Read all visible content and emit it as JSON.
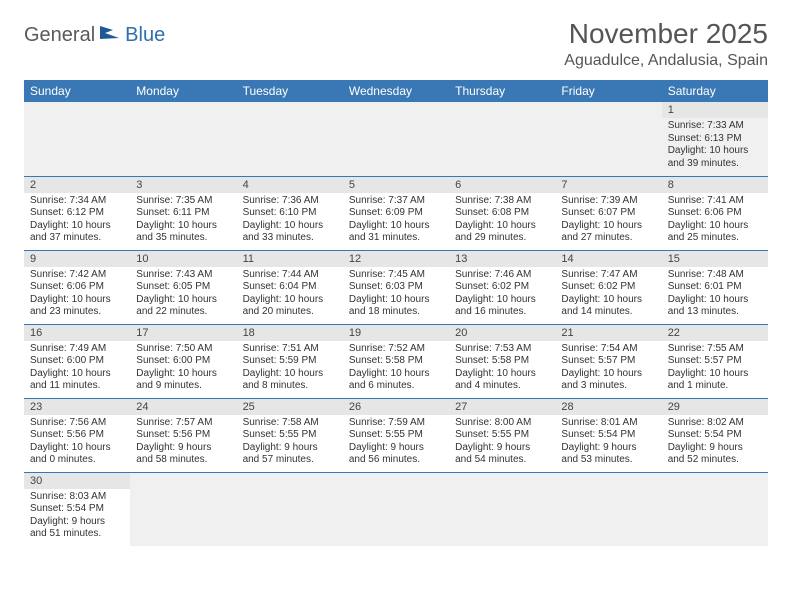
{
  "logo": {
    "text1": "General",
    "text2": "Blue"
  },
  "title": "November 2025",
  "location": "Aguadulce, Andalusia, Spain",
  "colors": {
    "header_bg": "#3a78b5",
    "header_text": "#ffffff",
    "daynum_bg": "#e6e6e6",
    "row_sep": "#3a78b5",
    "body_text": "#333333",
    "title_text": "#555555"
  },
  "columns": [
    "Sunday",
    "Monday",
    "Tuesday",
    "Wednesday",
    "Thursday",
    "Friday",
    "Saturday"
  ],
  "weeks": [
    [
      null,
      null,
      null,
      null,
      null,
      null,
      {
        "n": "1",
        "sr": "7:33 AM",
        "ss": "6:13 PM",
        "dl": "10 hours and 39 minutes."
      }
    ],
    [
      {
        "n": "2",
        "sr": "7:34 AM",
        "ss": "6:12 PM",
        "dl": "10 hours and 37 minutes."
      },
      {
        "n": "3",
        "sr": "7:35 AM",
        "ss": "6:11 PM",
        "dl": "10 hours and 35 minutes."
      },
      {
        "n": "4",
        "sr": "7:36 AM",
        "ss": "6:10 PM",
        "dl": "10 hours and 33 minutes."
      },
      {
        "n": "5",
        "sr": "7:37 AM",
        "ss": "6:09 PM",
        "dl": "10 hours and 31 minutes."
      },
      {
        "n": "6",
        "sr": "7:38 AM",
        "ss": "6:08 PM",
        "dl": "10 hours and 29 minutes."
      },
      {
        "n": "7",
        "sr": "7:39 AM",
        "ss": "6:07 PM",
        "dl": "10 hours and 27 minutes."
      },
      {
        "n": "8",
        "sr": "7:41 AM",
        "ss": "6:06 PM",
        "dl": "10 hours and 25 minutes."
      }
    ],
    [
      {
        "n": "9",
        "sr": "7:42 AM",
        "ss": "6:06 PM",
        "dl": "10 hours and 23 minutes."
      },
      {
        "n": "10",
        "sr": "7:43 AM",
        "ss": "6:05 PM",
        "dl": "10 hours and 22 minutes."
      },
      {
        "n": "11",
        "sr": "7:44 AM",
        "ss": "6:04 PM",
        "dl": "10 hours and 20 minutes."
      },
      {
        "n": "12",
        "sr": "7:45 AM",
        "ss": "6:03 PM",
        "dl": "10 hours and 18 minutes."
      },
      {
        "n": "13",
        "sr": "7:46 AM",
        "ss": "6:02 PM",
        "dl": "10 hours and 16 minutes."
      },
      {
        "n": "14",
        "sr": "7:47 AM",
        "ss": "6:02 PM",
        "dl": "10 hours and 14 minutes."
      },
      {
        "n": "15",
        "sr": "7:48 AM",
        "ss": "6:01 PM",
        "dl": "10 hours and 13 minutes."
      }
    ],
    [
      {
        "n": "16",
        "sr": "7:49 AM",
        "ss": "6:00 PM",
        "dl": "10 hours and 11 minutes."
      },
      {
        "n": "17",
        "sr": "7:50 AM",
        "ss": "6:00 PM",
        "dl": "10 hours and 9 minutes."
      },
      {
        "n": "18",
        "sr": "7:51 AM",
        "ss": "5:59 PM",
        "dl": "10 hours and 8 minutes."
      },
      {
        "n": "19",
        "sr": "7:52 AM",
        "ss": "5:58 PM",
        "dl": "10 hours and 6 minutes."
      },
      {
        "n": "20",
        "sr": "7:53 AM",
        "ss": "5:58 PM",
        "dl": "10 hours and 4 minutes."
      },
      {
        "n": "21",
        "sr": "7:54 AM",
        "ss": "5:57 PM",
        "dl": "10 hours and 3 minutes."
      },
      {
        "n": "22",
        "sr": "7:55 AM",
        "ss": "5:57 PM",
        "dl": "10 hours and 1 minute."
      }
    ],
    [
      {
        "n": "23",
        "sr": "7:56 AM",
        "ss": "5:56 PM",
        "dl": "10 hours and 0 minutes."
      },
      {
        "n": "24",
        "sr": "7:57 AM",
        "ss": "5:56 PM",
        "dl": "9 hours and 58 minutes."
      },
      {
        "n": "25",
        "sr": "7:58 AM",
        "ss": "5:55 PM",
        "dl": "9 hours and 57 minutes."
      },
      {
        "n": "26",
        "sr": "7:59 AM",
        "ss": "5:55 PM",
        "dl": "9 hours and 56 minutes."
      },
      {
        "n": "27",
        "sr": "8:00 AM",
        "ss": "5:55 PM",
        "dl": "9 hours and 54 minutes."
      },
      {
        "n": "28",
        "sr": "8:01 AM",
        "ss": "5:54 PM",
        "dl": "9 hours and 53 minutes."
      },
      {
        "n": "29",
        "sr": "8:02 AM",
        "ss": "5:54 PM",
        "dl": "9 hours and 52 minutes."
      }
    ],
    [
      {
        "n": "30",
        "sr": "8:03 AM",
        "ss": "5:54 PM",
        "dl": "9 hours and 51 minutes."
      },
      null,
      null,
      null,
      null,
      null,
      null
    ]
  ],
  "labels": {
    "sunrise": "Sunrise:",
    "sunset": "Sunset:",
    "daylight": "Daylight:"
  }
}
